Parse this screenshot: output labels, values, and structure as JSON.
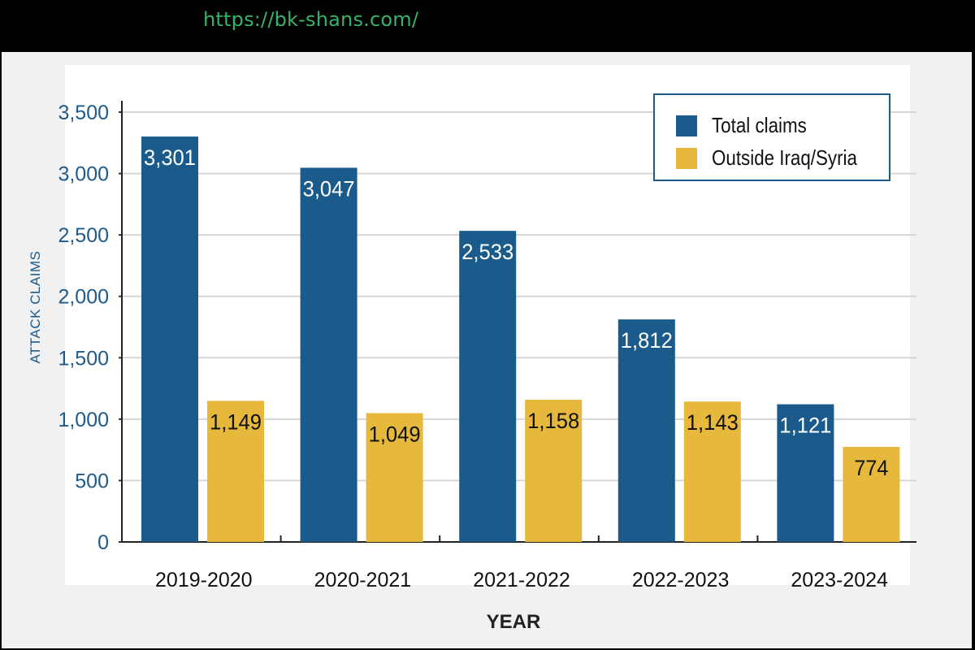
{
  "header": {
    "url": "https://bk-shans.com/"
  },
  "colors": {
    "total": "#1a5b8c",
    "outside": "#e6b93c",
    "axis_text": "#1e5a8a"
  },
  "chart_data": {
    "type": "bar",
    "categories": [
      "2019-2020",
      "2020-2021",
      "2021-2022",
      "2022-2023",
      "2023-2024"
    ],
    "series": [
      {
        "name": "Total claims",
        "values": [
          3301,
          3047,
          2533,
          1812,
          1121
        ],
        "labels": [
          "3,301",
          "3,047",
          "2,533",
          "1,812",
          "1,121"
        ]
      },
      {
        "name": "Outside Iraq/Syria",
        "values": [
          1149,
          1049,
          1158,
          1143,
          774
        ],
        "labels": [
          "1,149",
          "1,049",
          "1,158",
          "1,143",
          "774"
        ]
      }
    ],
    "ylim": [
      0,
      3500
    ],
    "yticks": [
      "0",
      "500",
      "1,000",
      "1,500",
      "2,000",
      "2,500",
      "3,000",
      "3,500"
    ],
    "xlabel": "YEAR",
    "ylabel": "ATTACK CLAIMS",
    "grid": true,
    "legend": "top-right"
  }
}
